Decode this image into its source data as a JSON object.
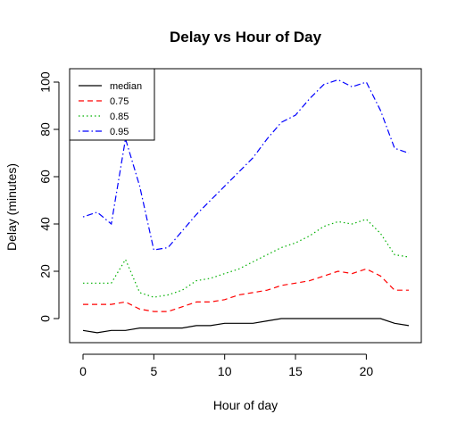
{
  "chart_data": {
    "type": "line",
    "title": "Delay vs Hour of Day",
    "xlabel": "Hour of day",
    "ylabel": "Delay (minutes)",
    "xlim": [
      0,
      23
    ],
    "ylim": [
      -10,
      105
    ],
    "xticks": [
      0,
      5,
      10,
      15,
      20
    ],
    "yticks": [
      0,
      20,
      40,
      60,
      80,
      100
    ],
    "grid": false,
    "legend_position": "top-left",
    "x": [
      0,
      1,
      2,
      3,
      4,
      5,
      6,
      7,
      8,
      9,
      10,
      11,
      12,
      13,
      14,
      15,
      16,
      17,
      18,
      19,
      20,
      21,
      22,
      23
    ],
    "series": [
      {
        "name": "median",
        "color": "#000000",
        "dash": "solid",
        "values": [
          -5,
          -6,
          -5,
          -5,
          -4,
          -4,
          -4,
          -4,
          -3,
          -3,
          -2,
          -2,
          -2,
          -1,
          0,
          0,
          0,
          0,
          0,
          0,
          0,
          0,
          -2,
          -3
        ]
      },
      {
        "name": "0.75",
        "color": "#ff0000",
        "dash": "dashed",
        "values": [
          6,
          6,
          6,
          7,
          4,
          3,
          3,
          5,
          7,
          7,
          8,
          10,
          11,
          12,
          14,
          15,
          16,
          18,
          20,
          19,
          21,
          18,
          12,
          12
        ]
      },
      {
        "name": "0.85",
        "color": "#00b000",
        "dash": "dotted",
        "values": [
          15,
          15,
          15,
          25,
          11,
          9,
          10,
          12,
          16,
          17,
          19,
          21,
          24,
          27,
          30,
          32,
          35,
          39,
          41,
          40,
          42,
          36,
          27,
          26
        ]
      },
      {
        "name": "0.95",
        "color": "#0000ff",
        "dash": "dotdash",
        "values": [
          43,
          45,
          40,
          76,
          56,
          29,
          30,
          37,
          44,
          50,
          56,
          62,
          68,
          76,
          83,
          86,
          93,
          99,
          101,
          98,
          100,
          88,
          72,
          70
        ]
      }
    ]
  }
}
